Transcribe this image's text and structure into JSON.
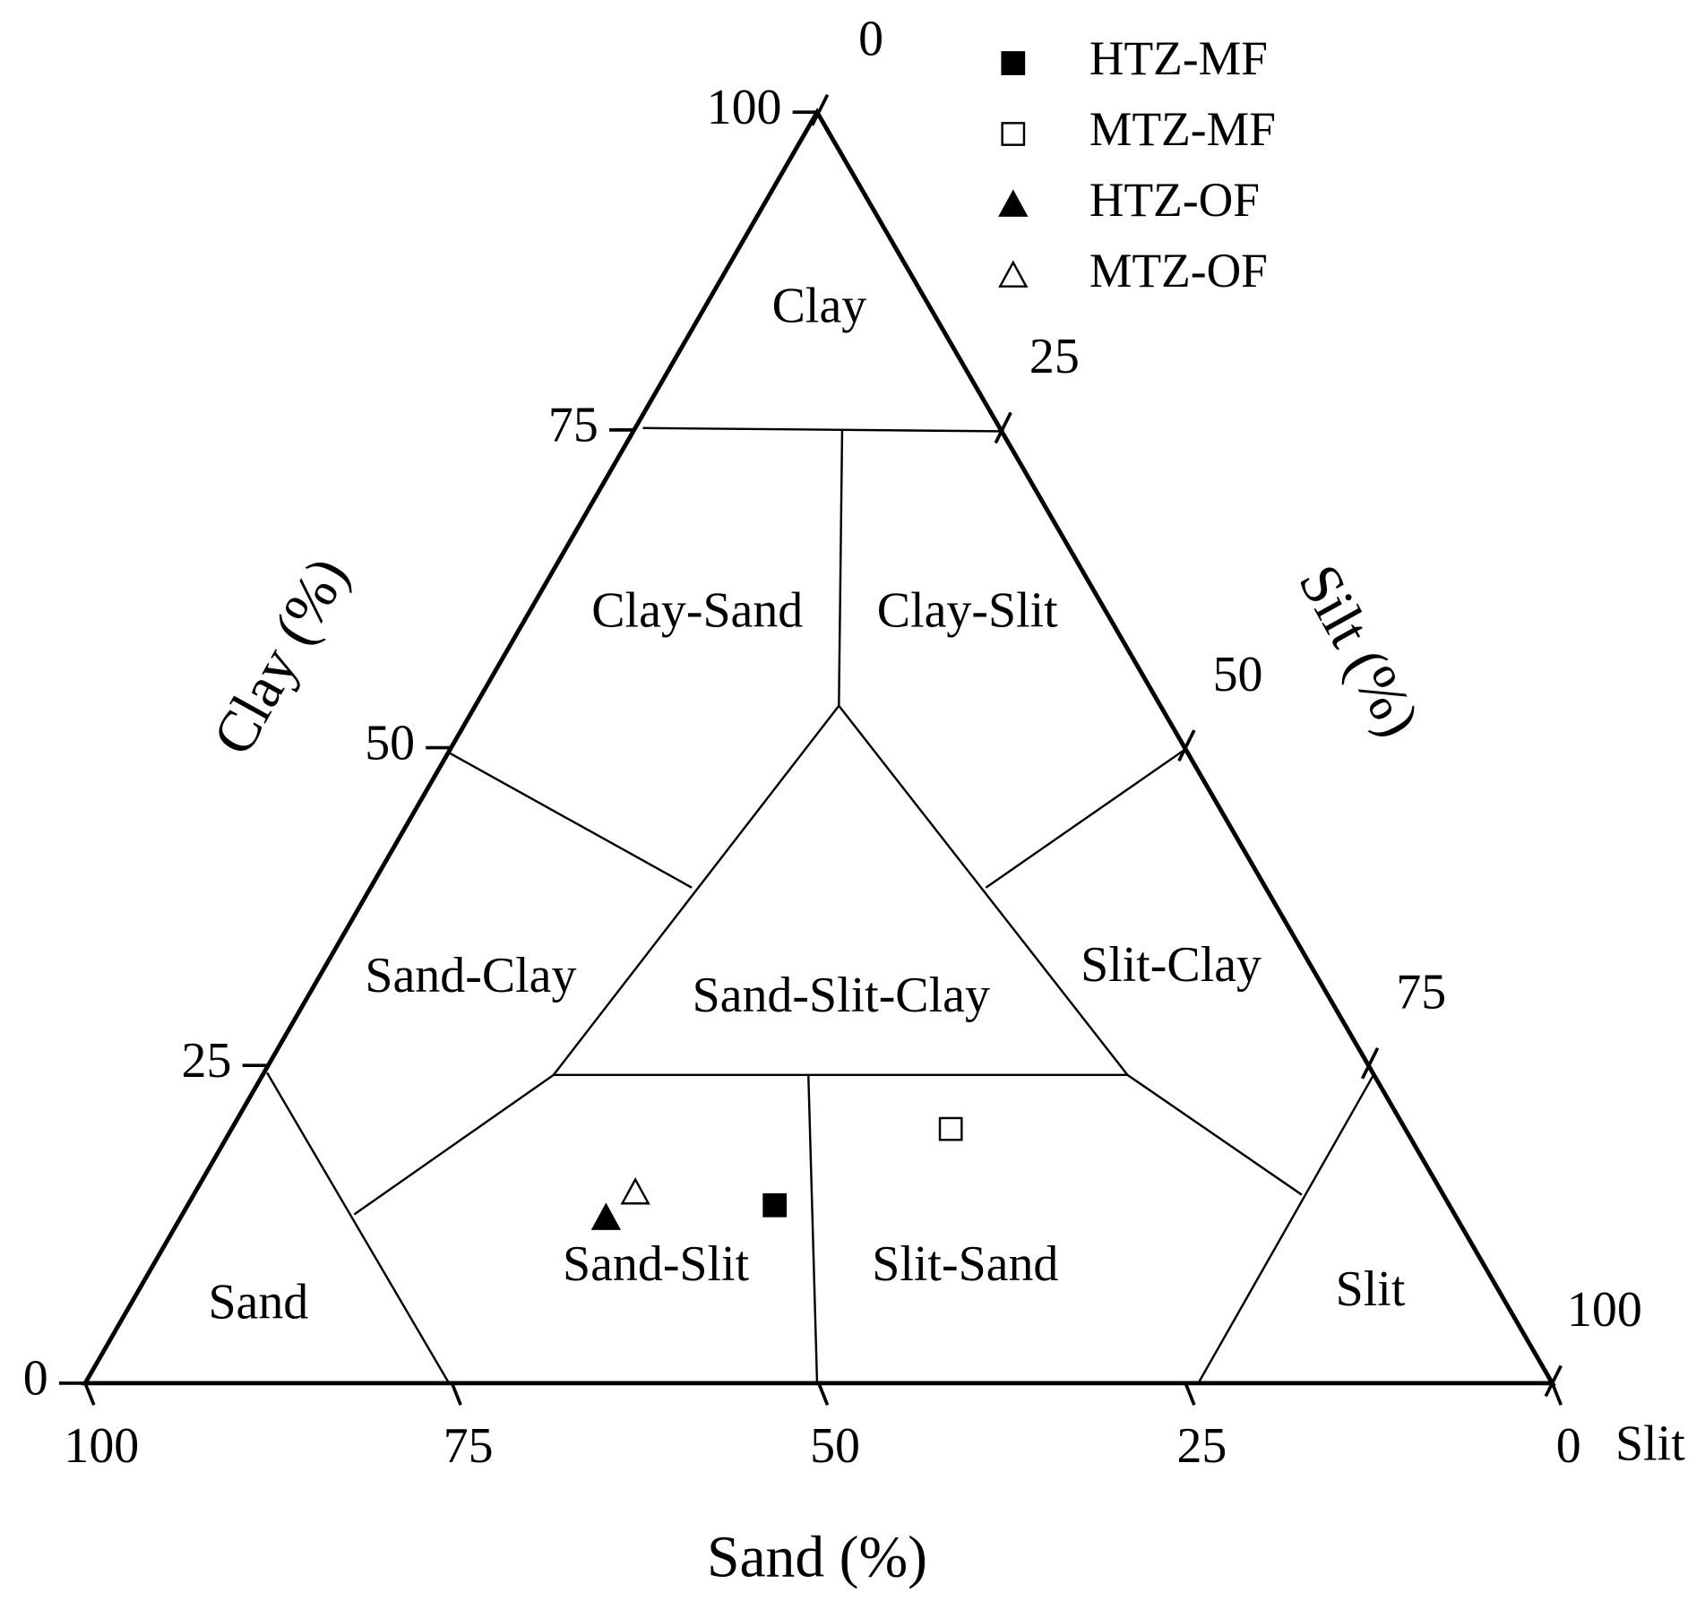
{
  "chart_data": {
    "type": "ternary",
    "axis_titles": {
      "clay": "Clay (%)",
      "silt": "Silt (%)",
      "sand": "Sand (%)"
    },
    "corner_label": "Slit",
    "clay_lim": [
      0,
      100
    ],
    "silt_lim": [
      0,
      100
    ],
    "sand_lim": [
      0,
      100
    ],
    "clay_ticks": [
      0,
      25,
      50,
      75,
      100
    ],
    "silt_ticks": [
      0,
      25,
      50,
      75,
      100
    ],
    "sand_ticks": [
      0,
      25,
      50,
      75,
      100
    ],
    "regions": [
      "Clay",
      "Clay-Sand",
      "Clay-Slit",
      "Sand-Clay",
      "Sand-Slit-Clay",
      "Slit-Clay",
      "Sand",
      "Sand-Slit",
      "Slit-Sand",
      "Slit"
    ],
    "series": [
      {
        "name": "HTZ-MF",
        "marker": "square",
        "filled": true,
        "color": "#000000",
        "sand": 46,
        "silt": 40,
        "clay": 14
      },
      {
        "name": "MTZ-MF",
        "marker": "square",
        "filled": false,
        "color": "#000000",
        "sand": 31,
        "silt": 49,
        "clay": 20
      },
      {
        "name": "HTZ-OF",
        "marker": "triangle",
        "filled": true,
        "color": "#000000",
        "sand": 58,
        "silt": 29,
        "clay": 13
      },
      {
        "name": "MTZ-OF",
        "marker": "triangle",
        "filled": false,
        "color": "#000000",
        "sand": 55,
        "silt": 30,
        "clay": 15
      }
    ]
  }
}
